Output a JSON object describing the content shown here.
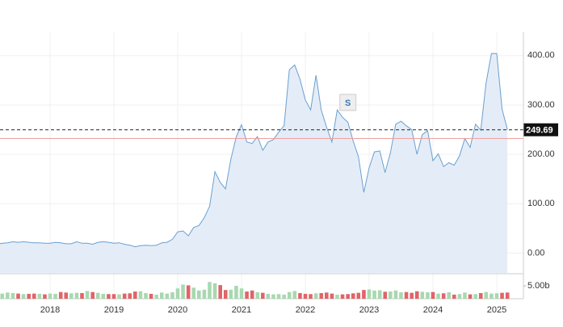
{
  "chart_data": {
    "type": "line",
    "x": [
      2017.167,
      2017.25,
      2017.333,
      2017.417,
      2017.5,
      2017.583,
      2017.667,
      2017.75,
      2017.833,
      2017.917,
      2018,
      2018.083,
      2018.167,
      2018.25,
      2018.333,
      2018.417,
      2018.5,
      2018.583,
      2018.667,
      2018.75,
      2018.833,
      2018.917,
      2019,
      2019.083,
      2019.167,
      2019.25,
      2019.333,
      2019.417,
      2019.5,
      2019.583,
      2019.667,
      2019.75,
      2019.833,
      2019.917,
      2020,
      2020.083,
      2020.167,
      2020.25,
      2020.333,
      2020.417,
      2020.5,
      2020.583,
      2020.667,
      2020.75,
      2020.833,
      2020.917,
      2021,
      2021.083,
      2021.167,
      2021.25,
      2021.333,
      2021.417,
      2021.5,
      2021.583,
      2021.667,
      2021.75,
      2021.833,
      2021.917,
      2022,
      2022.083,
      2022.167,
      2022.25,
      2022.333,
      2022.417,
      2022.5,
      2022.583,
      2022.667,
      2022.75,
      2022.833,
      2022.917,
      2023,
      2023.083,
      2023.167,
      2023.25,
      2023.333,
      2023.417,
      2023.5,
      2023.583,
      2023.667,
      2023.75,
      2023.833,
      2023.917,
      2024,
      2024.083,
      2024.167,
      2024.25,
      2024.333,
      2024.417,
      2024.5,
      2024.583,
      2024.667,
      2024.75,
      2024.833,
      2024.917,
      2025,
      2025.083,
      2025.167
    ],
    "series": [
      {
        "color": "#6a9fd0",
        "values": [
          18,
          20,
          21,
          23,
          22,
          23,
          22,
          21,
          21,
          20,
          20,
          22,
          21,
          19,
          19,
          23,
          20,
          20,
          18,
          22,
          23,
          22,
          20,
          21,
          18,
          16,
          13,
          15,
          16,
          15,
          16,
          21,
          22,
          28,
          43,
          45,
          35,
          52,
          56,
          72,
          95,
          165,
          143,
          130,
          190,
          235,
          260,
          225,
          222,
          236,
          208,
          225,
          230,
          245,
          258,
          371,
          381,
          352,
          310,
          290,
          360,
          290,
          255,
          225,
          290,
          275,
          265,
          227,
          195,
          123,
          173,
          205,
          207,
          163,
          203,
          261,
          267,
          258,
          250,
          200,
          240,
          248,
          187,
          201,
          175,
          183,
          178,
          197,
          232,
          214,
          261,
          249,
          345,
          404,
          404,
          292,
          250
        ]
      },
      {
        "axis": "y2",
        "up_color": "#a8d8b0",
        "down_color": "#e06468",
        "values": [
          2.1,
          2.0,
          2.4,
          2.2,
          2.0,
          1.8,
          1.9,
          2.0,
          1.9,
          1.7,
          2.0,
          1.9,
          2.6,
          2.4,
          2.1,
          2.3,
          2.2,
          3.0,
          2.6,
          2.3,
          1.9,
          1.8,
          1.8,
          1.7,
          2.0,
          2.1,
          2.8,
          2.9,
          2.2,
          1.9,
          1.6,
          2.4,
          2.0,
          2.5,
          4.0,
          5.5,
          5.2,
          4.3,
          3.2,
          3.5,
          6.5,
          6.0,
          5.3,
          3.4,
          3.5,
          5.0,
          4.0,
          2.8,
          3.2,
          2.5,
          2.3,
          1.9,
          1.7,
          1.8,
          1.6,
          2.6,
          3.0,
          2.2,
          1.9,
          1.8,
          2.1,
          2.2,
          2.4,
          2.0,
          1.6,
          1.7,
          1.8,
          2.1,
          2.3,
          3.4,
          3.6,
          3.2,
          3.3,
          2.7,
          2.8,
          3.2,
          2.5,
          2.6,
          2.3,
          2.9,
          2.7,
          2.5,
          2.6,
          2.0,
          2.1,
          2.5,
          1.6,
          1.8,
          2.4,
          1.7,
          1.8,
          2.2,
          2.6,
          2.0,
          2.1,
          2.3,
          2.4
        ]
      }
    ],
    "xlim": [
      2017.215,
      2025.418
    ],
    "xticks": [
      2018,
      2019,
      2020,
      2021,
      2022,
      2023,
      2024,
      2025
    ],
    "ylim": [
      -40,
      447
    ],
    "yticks": [
      {
        "value": 0,
        "label": "0.00"
      },
      {
        "value": 100,
        "label": "100.00"
      },
      {
        "value": 200,
        "label": "200.00"
      },
      {
        "value": 300,
        "label": "300.00"
      },
      {
        "value": 400,
        "label": "400.00"
      }
    ],
    "y2lim": [
      0,
      9.4
    ],
    "y2ticks": [
      {
        "value": 5,
        "label": "5.00b"
      }
    ],
    "current_price": {
      "value": 249.69,
      "label": "249.69"
    },
    "reference_line": 232,
    "annotations": [
      {
        "label": "S",
        "x": 2022.667,
        "y": 305
      }
    ],
    "grid": true
  }
}
